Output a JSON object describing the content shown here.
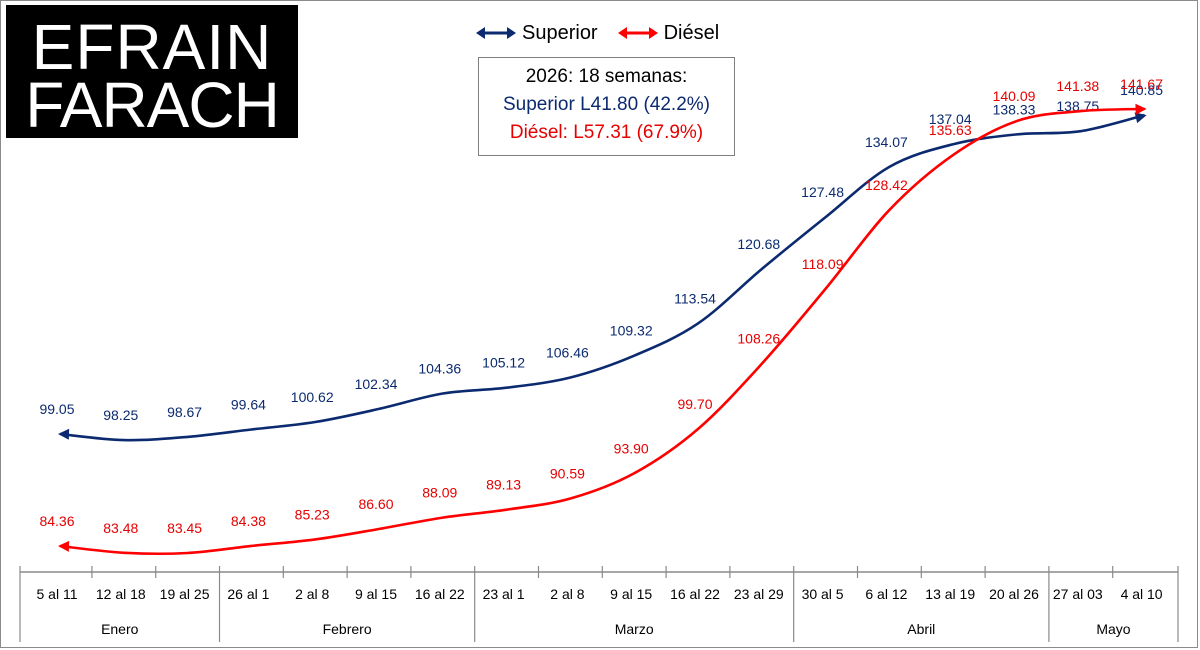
{
  "logo": {
    "line1": "EFRAIN",
    "line2": "FARACH"
  },
  "legend": {
    "superior": "Superior",
    "diesel": "Diésel"
  },
  "info": {
    "line1": "2026: 18 semanas:",
    "line2": "Superior L41.80 (42.2%)",
    "line3": "Diésel:  L57.31 (67.9%)"
  },
  "colors": {
    "superior": "#0b2a6f",
    "diesel": "#ff0000",
    "diesel_label": "#e60000"
  },
  "chart_data": {
    "type": "line",
    "categories": [
      "5 al 11",
      "12 al 18",
      "19 al 25",
      "26 al 1",
      "2 al 8",
      "9 al 15",
      "16 al 22",
      "23 al 1",
      "2 al 8",
      "9 al 15",
      "16 al 22",
      "23 al 29",
      "30 al 5",
      "6 al 12",
      "13 al 19",
      "20 al 26",
      "27 al 03",
      "4 al 10"
    ],
    "groups": [
      {
        "label": "Enero",
        "count": 3
      },
      {
        "label": "Febrero",
        "count": 4
      },
      {
        "label": "Marzo",
        "count": 5
      },
      {
        "label": "Abril",
        "count": 4
      },
      {
        "label": "Mayo",
        "count": 2
      }
    ],
    "series": [
      {
        "name": "Superior",
        "values": [
          99.05,
          98.25,
          98.67,
          99.64,
          100.62,
          102.34,
          104.36,
          105.12,
          106.46,
          109.32,
          113.54,
          120.68,
          127.48,
          134.07,
          137.04,
          138.33,
          138.75,
          140.85
        ]
      },
      {
        "name": "Diésel",
        "values": [
          84.36,
          83.48,
          83.45,
          84.38,
          85.23,
          86.6,
          88.09,
          89.13,
          90.59,
          93.9,
          99.7,
          108.26,
          118.09,
          128.42,
          135.63,
          140.09,
          141.38,
          141.67
        ]
      }
    ],
    "ylim": [
      80,
      145
    ],
    "grid": false,
    "legend_position": "top-center"
  }
}
